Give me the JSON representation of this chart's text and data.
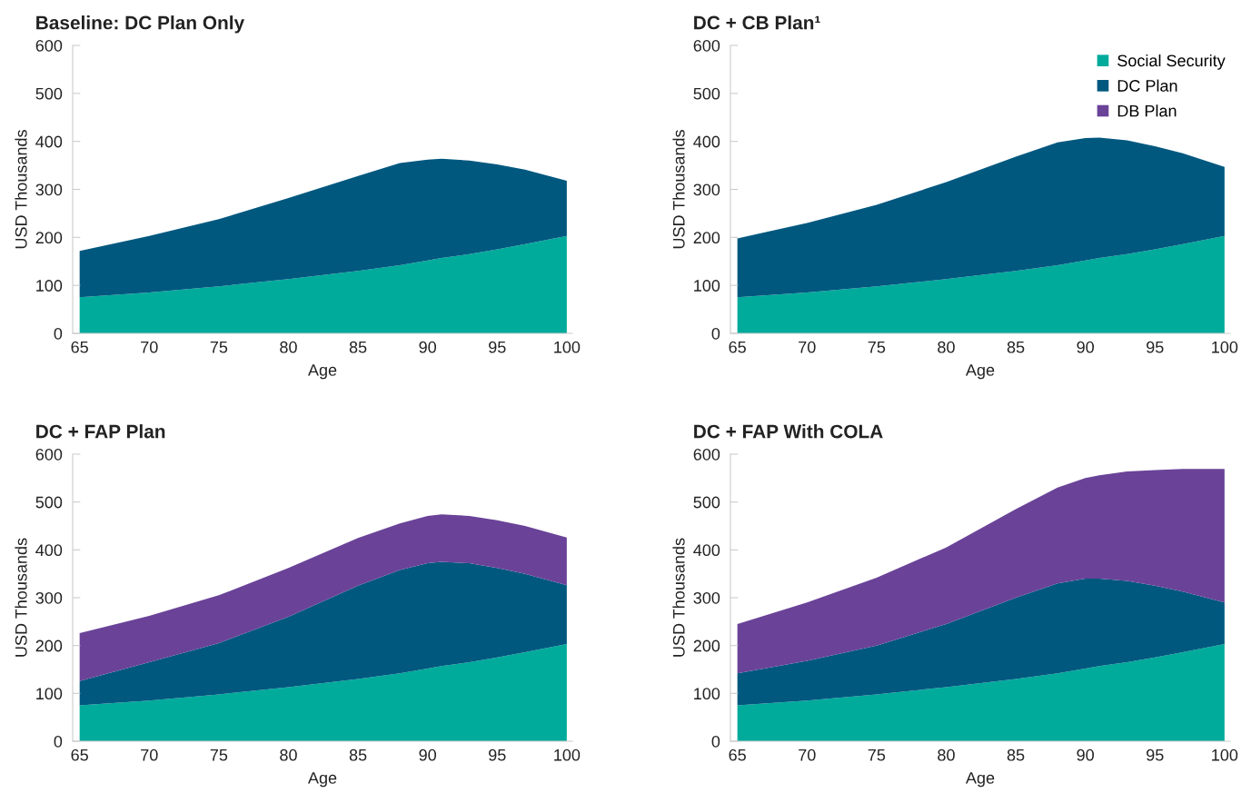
{
  "chart_data": [
    {
      "type": "area",
      "stacked": true,
      "title": "Baseline: DC Plan Only",
      "xlabel": "Age",
      "ylabel": "USD Thousands",
      "x": [
        65,
        70,
        75,
        80,
        85,
        88,
        90,
        91,
        93,
        95,
        97,
        100
      ],
      "xlim": [
        64.5,
        100.4
      ],
      "xticks": [
        65,
        70,
        75,
        80,
        85,
        90,
        95,
        100
      ],
      "ylim": [
        0,
        600
      ],
      "yticks": [
        0,
        100,
        200,
        300,
        400,
        500,
        600
      ],
      "grid": false,
      "legend": false,
      "series": [
        {
          "color": "#00ab9c",
          "values": [
            75,
            85,
            98,
            113,
            130,
            142,
            152,
            157,
            165,
            175,
            186,
            203
          ]
        },
        {
          "color": "#00587f",
          "values": [
            97,
            118,
            140,
            169,
            198,
            213,
            210,
            207,
            195,
            177,
            155,
            115
          ]
        }
      ]
    },
    {
      "type": "area",
      "stacked": true,
      "title": "DC + CB Plan¹",
      "xlabel": "Age",
      "ylabel": "USD Thousands",
      "x": [
        65,
        70,
        75,
        80,
        85,
        88,
        90,
        91,
        93,
        95,
        97,
        100
      ],
      "xlim": [
        64.5,
        100.4
      ],
      "xticks": [
        65,
        70,
        75,
        80,
        85,
        90,
        95,
        100
      ],
      "ylim": [
        0,
        600
      ],
      "yticks": [
        0,
        100,
        200,
        300,
        400,
        500,
        600
      ],
      "grid": false,
      "legend": "top right",
      "series": [
        {
          "name": "Social Security",
          "color": "#00ab9c",
          "values": [
            75,
            85,
            98,
            113,
            130,
            142,
            152,
            157,
            165,
            175,
            186,
            203
          ]
        },
        {
          "name": "DC Plan",
          "color": "#00587f",
          "values": [
            123,
            145,
            170,
            202,
            238,
            256,
            255,
            251,
            237,
            215,
            189,
            144
          ]
        },
        {
          "name": "DB Plan",
          "color": "#6a4398",
          "values": [
            null,
            null,
            null,
            null,
            null,
            null,
            null,
            null,
            null,
            null,
            null,
            null
          ]
        }
      ]
    },
    {
      "type": "area",
      "stacked": true,
      "title": "DC + FAP Plan",
      "xlabel": "Age",
      "ylabel": "USD Thousands",
      "x": [
        65,
        70,
        75,
        80,
        85,
        88,
        90,
        91,
        93,
        95,
        97,
        100
      ],
      "xlim": [
        64.5,
        100.4
      ],
      "xticks": [
        65,
        70,
        75,
        80,
        85,
        90,
        95,
        100
      ],
      "ylim": [
        0,
        600
      ],
      "yticks": [
        0,
        100,
        200,
        300,
        400,
        500,
        600
      ],
      "grid": false,
      "legend": false,
      "series": [
        {
          "color": "#00ab9c",
          "values": [
            75,
            85,
            98,
            113,
            130,
            142,
            152,
            157,
            165,
            175,
            186,
            203
          ]
        },
        {
          "color": "#00587f",
          "values": [
            51,
            80,
            107,
            147,
            195,
            216,
            220,
            218,
            207,
            187,
            164,
            123
          ]
        },
        {
          "color": "#6a4398",
          "values": [
            100,
            97,
            100,
            102,
            100,
            97,
            99,
            99,
            99,
            100,
            100,
            100
          ]
        }
      ]
    },
    {
      "type": "area",
      "stacked": true,
      "title": "DC + FAP With COLA",
      "xlabel": "Age",
      "ylabel": "USD Thousands",
      "x": [
        65,
        70,
        75,
        80,
        85,
        88,
        90,
        91,
        93,
        95,
        97,
        100
      ],
      "xlim": [
        64.5,
        100.4
      ],
      "xticks": [
        65,
        70,
        75,
        80,
        85,
        90,
        95,
        100
      ],
      "ylim": [
        0,
        600
      ],
      "yticks": [
        0,
        100,
        200,
        300,
        400,
        500,
        600
      ],
      "grid": false,
      "legend": false,
      "series": [
        {
          "color": "#00ab9c",
          "values": [
            75,
            85,
            98,
            113,
            130,
            142,
            152,
            157,
            165,
            175,
            186,
            203
          ]
        },
        {
          "color": "#00587f",
          "values": [
            67,
            83,
            102,
            132,
            170,
            188,
            188,
            183,
            170,
            150,
            127,
            87
          ]
        },
        {
          "color": "#6a4398",
          "values": [
            103,
            122,
            142,
            160,
            185,
            200,
            210,
            216,
            229,
            242,
            256,
            279
          ]
        }
      ]
    }
  ]
}
